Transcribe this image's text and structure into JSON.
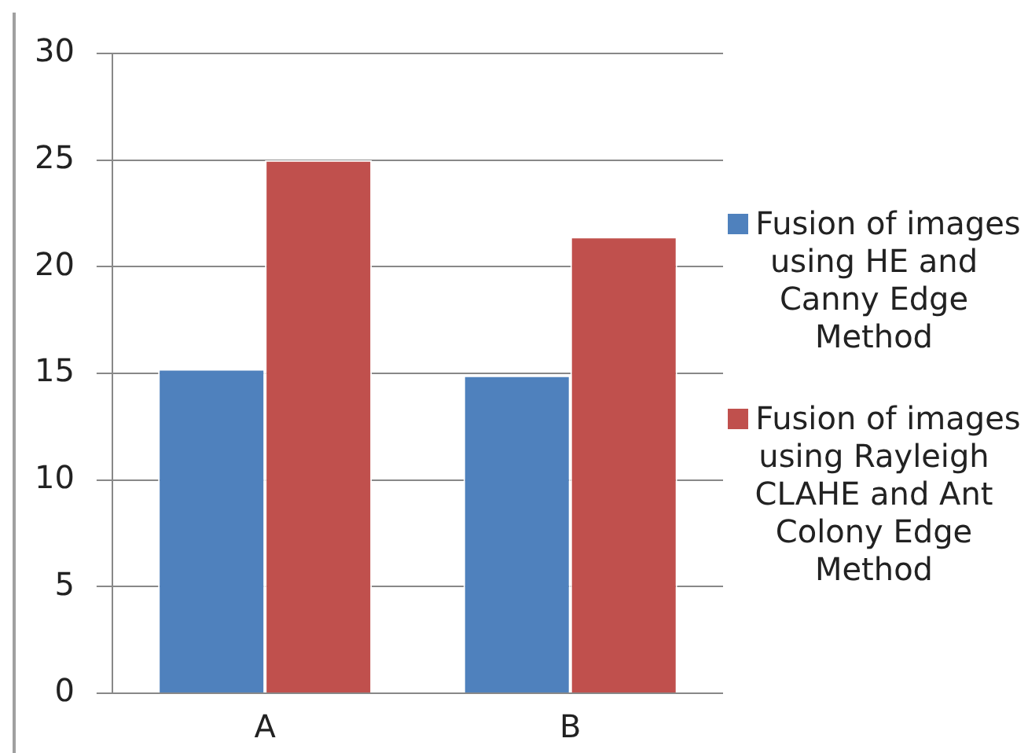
{
  "chart_data": {
    "type": "bar",
    "categories": [
      "A",
      "B"
    ],
    "series": [
      {
        "name": "Fusion of images using HE and Canny Edge Method",
        "color": "#4f81bd",
        "values": [
          15.2,
          14.9
        ]
      },
      {
        "name": "Fusion of images using Rayleigh CLAHE and Ant Colony Edge Method",
        "color": "#c0504d",
        "values": [
          25,
          21.4
        ]
      }
    ],
    "ylim": [
      0,
      30
    ],
    "yticks": [
      0,
      5,
      10,
      15,
      20,
      25,
      30
    ],
    "grid": "y",
    "legend": "right"
  }
}
